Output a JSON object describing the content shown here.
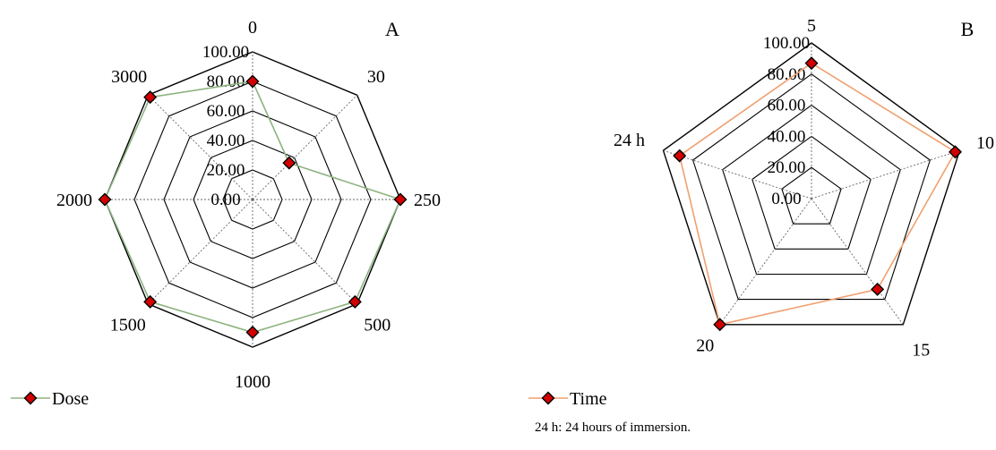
{
  "chart_data": [
    {
      "type": "radar",
      "panel_label": "A",
      "categories": [
        "0",
        "30",
        "250",
        "500",
        "1000",
        "1500",
        "2000",
        "3000"
      ],
      "tick_labels": [
        "0.00",
        "20.00",
        "40.00",
        "60.00",
        "80.00",
        "100.00"
      ],
      "rlim": [
        0,
        100
      ],
      "grid": true,
      "legend_position": "bottom-left",
      "series": [
        {
          "name": "Dose",
          "values": [
            80,
            35,
            100,
            98,
            90,
            98,
            100,
            98
          ]
        }
      ],
      "colors": {
        "line": "#8db37e",
        "marker": "#d40000",
        "grid": "#000000"
      }
    },
    {
      "type": "radar",
      "panel_label": "B",
      "categories": [
        "5",
        "10",
        "15",
        "20",
        "24 h"
      ],
      "tick_labels": [
        "0.00",
        "20.00",
        "40.00",
        "60.00",
        "80.00",
        "100.00"
      ],
      "rlim": [
        0,
        100
      ],
      "grid": true,
      "legend_position": "bottom-left",
      "series": [
        {
          "name": "Time",
          "values": [
            87,
            97,
            72,
            100,
            89
          ]
        }
      ],
      "colors": {
        "line": "#f0a070",
        "marker": "#d40000",
        "grid": "#000000"
      }
    }
  ],
  "footnote": "24 h: 24 hours of immersion."
}
